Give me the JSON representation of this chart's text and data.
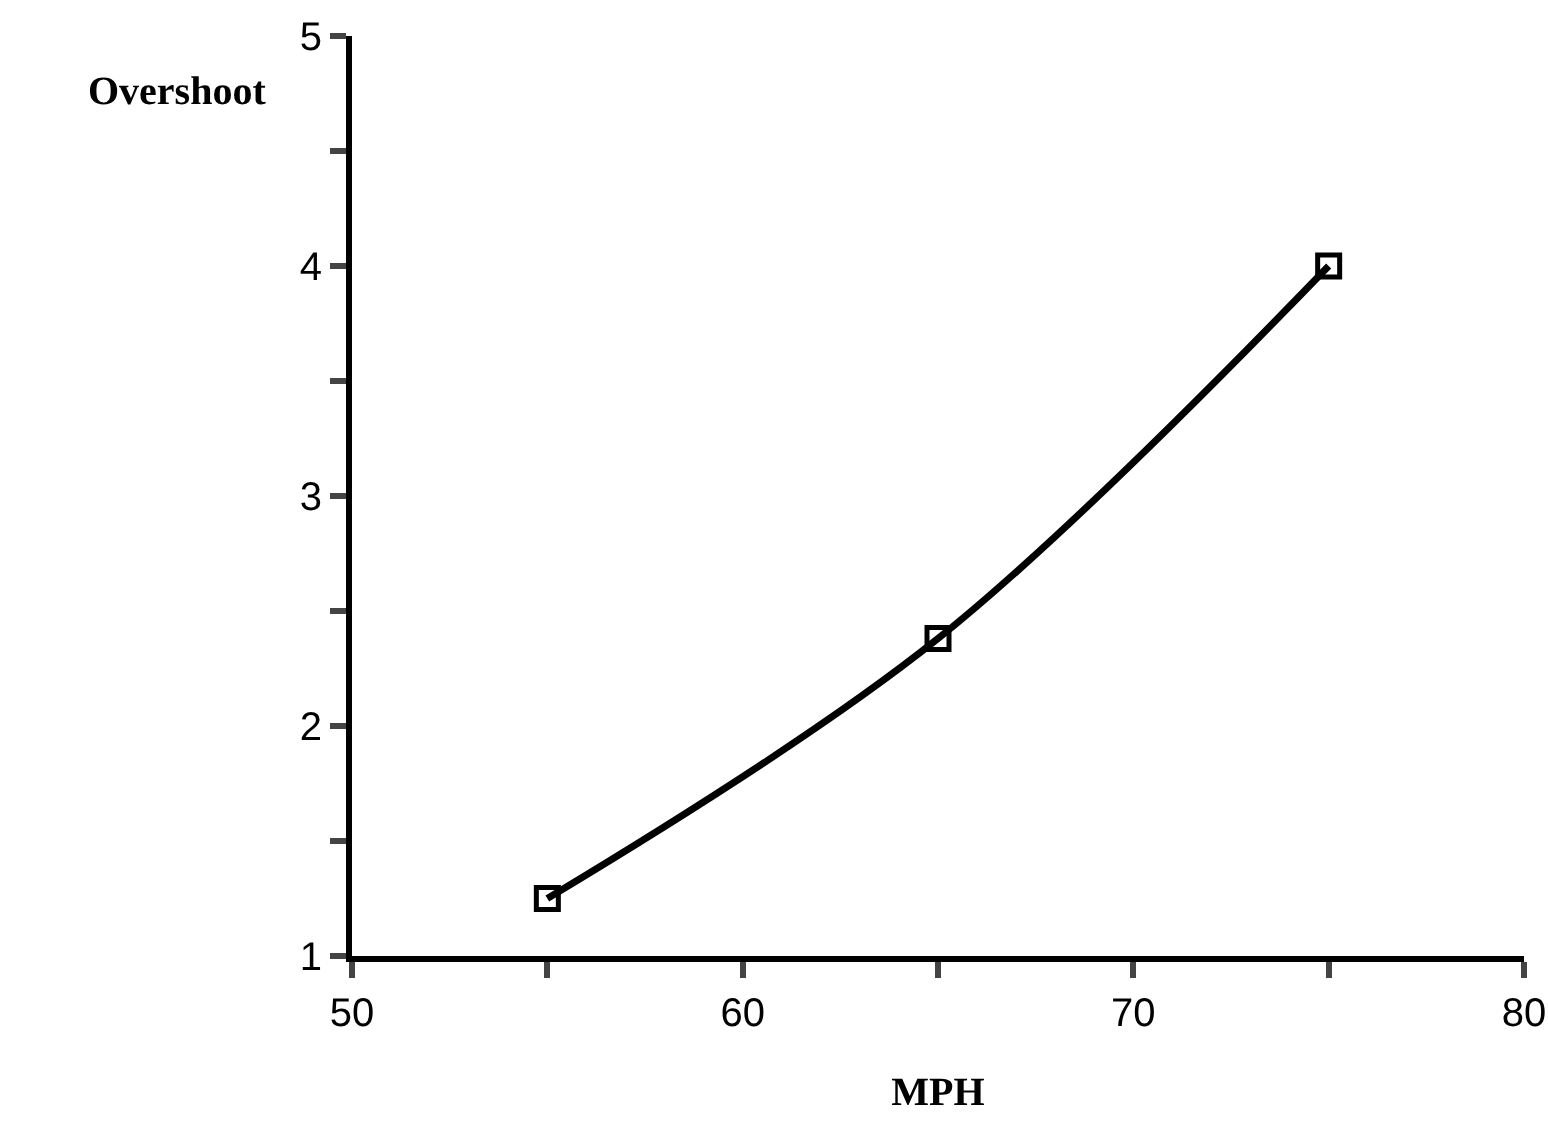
{
  "chart_data": {
    "type": "line",
    "xlabel": "MPH",
    "ylabel": "Overshoot",
    "x": [
      55,
      65,
      75
    ],
    "series": [
      {
        "color": "#000000",
        "values": [
          1.25,
          2.38,
          4.0
        ]
      }
    ],
    "xlim": [
      50,
      80
    ],
    "xticks": [
      50,
      {
        "value": 55,
        "label": null
      },
      60,
      {
        "value": 65,
        "label": null
      },
      70,
      {
        "value": 75,
        "label": null
      },
      80
    ],
    "ylim": [
      1,
      5
    ],
    "yticks": [
      1,
      {
        "value": 1.5,
        "label": null
      },
      2,
      {
        "value": 2.5,
        "label": null
      },
      3,
      {
        "value": 3.5,
        "label": null
      },
      4,
      {
        "value": 4.5,
        "label": null
      },
      5
    ],
    "grid": false,
    "marker": "square",
    "line_style": "solid"
  }
}
